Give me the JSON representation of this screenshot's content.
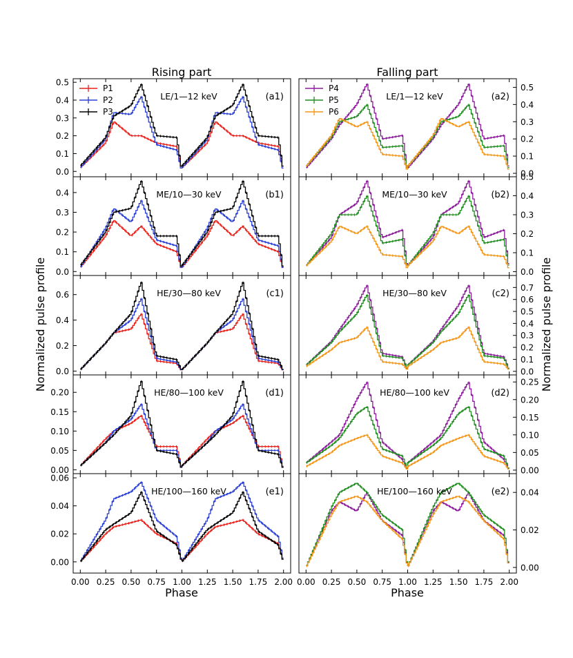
{
  "figure": {
    "col_titles": [
      "Rising part",
      "Falling part"
    ],
    "ylabel_left": "Normalized pulse profile",
    "ylabel_right": "Normalized pulse profile",
    "xlabel": "Phase",
    "x_ticks": [
      0.0,
      0.25,
      0.5,
      0.75,
      1.0,
      1.25,
      1.5,
      1.75,
      2.0
    ],
    "x_tick_labels": [
      "0.00",
      "0.25",
      "0.50",
      "0.75",
      "1.00",
      "1.25",
      "1.50",
      "1.75",
      "2.00"
    ],
    "xlim": [
      -0.07,
      2.07
    ]
  },
  "legends": {
    "left": [
      {
        "name": "P1",
        "color": "#e8221b"
      },
      {
        "name": "P2",
        "color": "#2a3fd6"
      },
      {
        "name": "P3",
        "color": "#000000"
      }
    ],
    "right": [
      {
        "name": "P4",
        "color": "#8b1a9a"
      },
      {
        "name": "P5",
        "color": "#1e8c1e"
      },
      {
        "name": "P6",
        "color": "#f39617"
      }
    ]
  },
  "chart_data": [
    {
      "type": "line",
      "panel": "a1",
      "band": "LE/1—12 keV",
      "label": "(a1)",
      "ylim": [
        -0.03,
        0.52
      ],
      "yticks": [
        0.0,
        0.1,
        0.2,
        0.3,
        0.4,
        0.5
      ],
      "ytick_labels": [
        "0.0",
        "0.1",
        "0.2",
        "0.3",
        "0.4",
        "0.5"
      ],
      "x": [
        0.0,
        0.25,
        0.33,
        0.5,
        0.6,
        0.75,
        0.95,
        1.0
      ],
      "series": [
        {
          "name": "P1",
          "values": [
            0.02,
            0.16,
            0.28,
            0.2,
            0.2,
            0.16,
            0.14,
            0.01
          ]
        },
        {
          "name": "P2",
          "values": [
            0.02,
            0.18,
            0.33,
            0.32,
            0.42,
            0.15,
            0.12,
            0.0
          ]
        },
        {
          "name": "P3",
          "values": [
            0.03,
            0.19,
            0.31,
            0.37,
            0.49,
            0.2,
            0.19,
            0.0
          ]
        }
      ]
    },
    {
      "type": "line",
      "panel": "a2",
      "band": "LE/1—12 keV",
      "label": "(a2)",
      "ylim": [
        -0.02,
        0.55
      ],
      "yticks": [
        0.0,
        0.1,
        0.2,
        0.3,
        0.4,
        0.5
      ],
      "ytick_labels": [
        "0.0",
        "0.1",
        "0.2",
        "0.3",
        "0.4",
        "0.5"
      ],
      "x": [
        0.0,
        0.25,
        0.33,
        0.5,
        0.6,
        0.75,
        0.95,
        1.0
      ],
      "series": [
        {
          "name": "P4",
          "values": [
            0.03,
            0.2,
            0.28,
            0.4,
            0.52,
            0.2,
            0.22,
            0.01
          ]
        },
        {
          "name": "P5",
          "values": [
            0.04,
            0.21,
            0.3,
            0.33,
            0.4,
            0.15,
            0.16,
            0.01
          ]
        },
        {
          "name": "P6",
          "values": [
            0.04,
            0.22,
            0.32,
            0.27,
            0.3,
            0.11,
            0.1,
            0.01
          ]
        }
      ]
    },
    {
      "type": "line",
      "panel": "b1",
      "band": "ME/10—30 keV",
      "label": "(b1)",
      "ylim": [
        -0.02,
        0.48
      ],
      "yticks": [
        0.0,
        0.1,
        0.2,
        0.3,
        0.4
      ],
      "ytick_labels": [
        "0.0",
        "0.1",
        "0.2",
        "0.3",
        "0.4"
      ],
      "x": [
        0.0,
        0.25,
        0.33,
        0.5,
        0.6,
        0.75,
        0.95,
        1.0
      ],
      "series": [
        {
          "name": "P1",
          "values": [
            0.02,
            0.18,
            0.26,
            0.18,
            0.23,
            0.14,
            0.1,
            0.01
          ]
        },
        {
          "name": "P2",
          "values": [
            0.02,
            0.22,
            0.32,
            0.25,
            0.36,
            0.16,
            0.13,
            0.0
          ]
        },
        {
          "name": "P3",
          "values": [
            0.03,
            0.2,
            0.3,
            0.32,
            0.46,
            0.18,
            0.18,
            0.0
          ]
        }
      ]
    },
    {
      "type": "line",
      "panel": "b2",
      "band": "ME/10—30 keV",
      "label": "(b2)",
      "ylim": [
        -0.02,
        0.5
      ],
      "yticks": [
        0.0,
        0.1,
        0.2,
        0.3,
        0.4,
        0.5
      ],
      "ytick_labels": [
        "0.0",
        "0.1",
        "0.2",
        "0.3",
        "0.4",
        "0.5"
      ],
      "x": [
        0.0,
        0.25,
        0.33,
        0.5,
        0.6,
        0.75,
        0.95,
        1.0
      ],
      "series": [
        {
          "name": "P4",
          "values": [
            0.03,
            0.18,
            0.3,
            0.36,
            0.48,
            0.18,
            0.22,
            0.01
          ]
        },
        {
          "name": "P5",
          "values": [
            0.03,
            0.2,
            0.3,
            0.3,
            0.4,
            0.15,
            0.17,
            0.01
          ]
        },
        {
          "name": "P6",
          "values": [
            0.03,
            0.16,
            0.24,
            0.2,
            0.24,
            0.09,
            0.08,
            0.01
          ]
        }
      ]
    },
    {
      "type": "line",
      "panel": "c1",
      "band": "HE/30—80 keV",
      "label": "(c1)",
      "ylim": [
        -0.03,
        0.75
      ],
      "yticks": [
        0.0,
        0.2,
        0.4,
        0.6
      ],
      "ytick_labels": [
        "0.0",
        "0.2",
        "0.4",
        "0.6"
      ],
      "x": [
        0.0,
        0.25,
        0.33,
        0.5,
        0.6,
        0.75,
        0.95,
        1.0
      ],
      "series": [
        {
          "name": "P1",
          "values": [
            0.01,
            0.22,
            0.3,
            0.33,
            0.45,
            0.08,
            0.06,
            0.0
          ]
        },
        {
          "name": "P2",
          "values": [
            0.01,
            0.22,
            0.3,
            0.4,
            0.57,
            0.1,
            0.07,
            0.0
          ]
        },
        {
          "name": "P3",
          "values": [
            0.01,
            0.22,
            0.3,
            0.45,
            0.7,
            0.12,
            0.09,
            0.0
          ]
        }
      ]
    },
    {
      "type": "line",
      "panel": "c2",
      "band": "HE/30—80 keV",
      "label": "(c2)",
      "ylim": [
        -0.03,
        0.8
      ],
      "yticks": [
        0.0,
        0.1,
        0.2,
        0.3,
        0.4,
        0.5,
        0.6,
        0.7
      ],
      "ytick_labels": [
        "0.0",
        "0.1",
        "0.2",
        "0.3",
        "0.4",
        "0.5",
        "0.6",
        "0.7"
      ],
      "x": [
        0.0,
        0.25,
        0.33,
        0.5,
        0.6,
        0.75,
        0.95,
        1.0
      ],
      "series": [
        {
          "name": "P4",
          "values": [
            0.05,
            0.25,
            0.35,
            0.55,
            0.72,
            0.15,
            0.12,
            0.01
          ]
        },
        {
          "name": "P5",
          "values": [
            0.05,
            0.24,
            0.33,
            0.48,
            0.64,
            0.13,
            0.11,
            0.01
          ]
        },
        {
          "name": "P6",
          "values": [
            0.04,
            0.18,
            0.24,
            0.28,
            0.37,
            0.08,
            0.06,
            0.01
          ]
        }
      ]
    },
    {
      "type": "line",
      "panel": "d1",
      "band": "HE/80—100 keV",
      "label": "(d1)",
      "ylim": [
        -0.01,
        0.245
      ],
      "yticks": [
        0.0,
        0.05,
        0.1,
        0.15,
        0.2
      ],
      "ytick_labels": [
        "0.00",
        "0.05",
        "0.10",
        "0.15",
        "0.20"
      ],
      "x": [
        0.0,
        0.25,
        0.33,
        0.5,
        0.6,
        0.75,
        0.95,
        1.0
      ],
      "series": [
        {
          "name": "P1",
          "values": [
            0.01,
            0.08,
            0.1,
            0.12,
            0.14,
            0.06,
            0.06,
            0.0
          ]
        },
        {
          "name": "P2",
          "values": [
            0.01,
            0.07,
            0.1,
            0.13,
            0.17,
            0.05,
            0.05,
            0.0
          ]
        },
        {
          "name": "P3",
          "values": [
            0.01,
            0.07,
            0.09,
            0.14,
            0.23,
            0.05,
            0.04,
            0.0
          ]
        }
      ]
    },
    {
      "type": "line",
      "panel": "d2",
      "band": "HE/80—100 keV",
      "label": "(d2)",
      "ylim": [
        -0.01,
        0.27
      ],
      "yticks": [
        0.0,
        0.05,
        0.1,
        0.15,
        0.2,
        0.25
      ],
      "ytick_labels": [
        "0.00",
        "0.05",
        "0.10",
        "0.15",
        "0.20",
        "0.25"
      ],
      "x": [
        0.0,
        0.25,
        0.33,
        0.5,
        0.6,
        0.75,
        0.95,
        1.0
      ],
      "series": [
        {
          "name": "P4",
          "values": [
            0.02,
            0.08,
            0.1,
            0.2,
            0.25,
            0.08,
            0.03,
            0.0
          ]
        },
        {
          "name": "P5",
          "values": [
            0.02,
            0.07,
            0.09,
            0.16,
            0.18,
            0.06,
            0.04,
            0.0
          ]
        },
        {
          "name": "P6",
          "values": [
            0.01,
            0.05,
            0.07,
            0.09,
            0.1,
            0.04,
            0.02,
            0.0
          ]
        }
      ]
    },
    {
      "type": "line",
      "panel": "e1",
      "band": "HE/100—160 keV",
      "label": "(e1)",
      "ylim": [
        -0.008,
        0.063
      ],
      "yticks": [
        0.0,
        0.02,
        0.04,
        0.06
      ],
      "ytick_labels": [
        "0.00",
        "0.02",
        "0.04",
        "0.06"
      ],
      "x": [
        0.0,
        0.25,
        0.33,
        0.5,
        0.6,
        0.75,
        0.95,
        1.0
      ],
      "series": [
        {
          "name": "P1",
          "values": [
            0.0,
            0.02,
            0.025,
            0.028,
            0.03,
            0.02,
            0.013,
            0.0
          ]
        },
        {
          "name": "P2",
          "values": [
            0.0,
            0.03,
            0.045,
            0.05,
            0.057,
            0.03,
            0.018,
            0.0
          ]
        },
        {
          "name": "P3",
          "values": [
            0.0,
            0.023,
            0.027,
            0.035,
            0.05,
            0.022,
            0.012,
            0.0
          ]
        }
      ]
    },
    {
      "type": "line",
      "panel": "e2",
      "band": "HE/100—160 keV",
      "label": "(e2)",
      "ylim": [
        -0.003,
        0.05
      ],
      "yticks": [
        0.0,
        0.02,
        0.04
      ],
      "ytick_labels": [
        "0.00",
        "0.02",
        "0.04"
      ],
      "x": [
        0.0,
        0.25,
        0.33,
        0.5,
        0.6,
        0.75,
        0.95,
        1.0
      ],
      "series": [
        {
          "name": "P4",
          "values": [
            0.0,
            0.03,
            0.035,
            0.03,
            0.04,
            0.025,
            0.017,
            0.0
          ]
        },
        {
          "name": "P5",
          "values": [
            0.0,
            0.032,
            0.04,
            0.045,
            0.04,
            0.028,
            0.02,
            0.0
          ]
        },
        {
          "name": "P6",
          "values": [
            0.0,
            0.028,
            0.035,
            0.038,
            0.035,
            0.025,
            0.015,
            0.0
          ]
        }
      ]
    }
  ]
}
